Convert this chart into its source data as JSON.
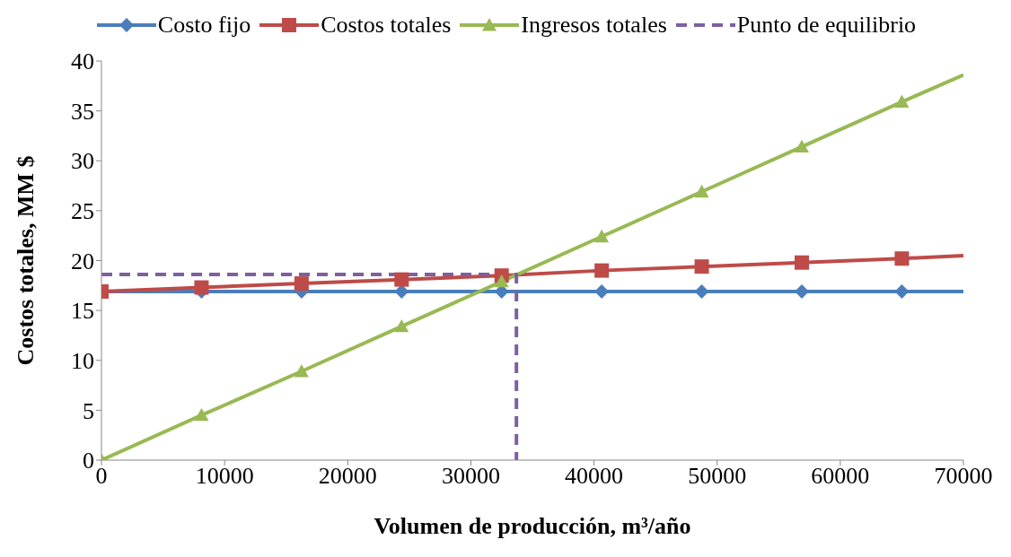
{
  "chart_data": {
    "type": "line",
    "xlabel": "Volumen de producción, m³/año",
    "ylabel": "Costos totales, MM $",
    "xlim": [
      0,
      70000
    ],
    "xticks": [
      0,
      10000,
      20000,
      30000,
      40000,
      50000,
      60000,
      70000
    ],
    "ylim": [
      0,
      40
    ],
    "yticks": [
      0,
      5,
      10,
      15,
      20,
      25,
      30,
      35,
      40
    ],
    "legend": "top",
    "series": [
      {
        "name": "Costo fijo",
        "color": "#4a7ebb",
        "marker": "diamond",
        "x": [
          0,
          8125,
          16250,
          24375,
          32500,
          40625,
          48750,
          56875,
          65000,
          70000
        ],
        "values": [
          16.9,
          16.9,
          16.9,
          16.9,
          16.9,
          16.9,
          16.9,
          16.9,
          16.9,
          16.9
        ]
      },
      {
        "name": "Costos totales",
        "color": "#be4b48",
        "marker": "square",
        "x": [
          0,
          8125,
          16250,
          24375,
          32500,
          40625,
          48750,
          56875,
          65000,
          70000
        ],
        "values": [
          16.9,
          17.3,
          17.7,
          18.1,
          18.5,
          19.0,
          19.4,
          19.8,
          20.2,
          20.5
        ]
      },
      {
        "name": "Ingresos totales",
        "color": "#98b954",
        "marker": "triangle",
        "x": [
          0,
          8125,
          16250,
          24375,
          32500,
          40625,
          48750,
          56875,
          65000,
          70000
        ],
        "values": [
          0,
          4.5,
          8.9,
          13.4,
          17.9,
          22.4,
          26.9,
          31.4,
          35.9,
          38.6
        ]
      },
      {
        "name": "Punto de equilibrio",
        "color": "#7d60a0",
        "marker": "none",
        "line_style": "dashed",
        "x": [
          0,
          33700,
          33700
        ],
        "values": [
          18.6,
          18.6,
          0
        ]
      }
    ]
  }
}
